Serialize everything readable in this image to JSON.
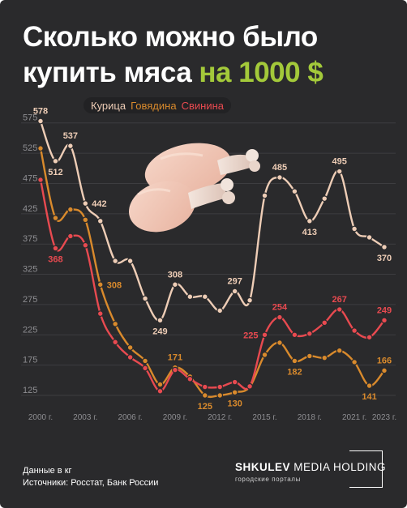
{
  "title": {
    "line1": "Сколько можно было",
    "line2_prefix": "купить мяса ",
    "line2_accent": "на 1000 $"
  },
  "colors": {
    "background": "#2a2a2c",
    "accent": "#a3c93a",
    "chicken": "#eecdb6",
    "beef": "#d98a2c",
    "pork": "#e84a50",
    "grid": "#3d3d40"
  },
  "legend": {
    "chicken": "Курица",
    "beef": "Говядина",
    "pork": "Свинина"
  },
  "footer": {
    "units": "Данные в кг",
    "sources": "Источники: Росстат, Банк России"
  },
  "brand": {
    "name_bold": "SHKULEV",
    "name_rest": " MEDIA HOLDING",
    "tagline": "городские порталы"
  },
  "image": {
    "name": "chicken-drumsticks"
  },
  "chart_data": {
    "type": "line",
    "x": [
      2000,
      2001,
      2002,
      2003,
      2004,
      2005,
      2006,
      2007,
      2008,
      2009,
      2010,
      2011,
      2012,
      2013,
      2014,
      2015,
      2016,
      2017,
      2018,
      2019,
      2020,
      2021,
      2022,
      2023
    ],
    "x_tick_labels": [
      "2000 г.",
      "2003 г.",
      "2006 г.",
      "2009 г.",
      "2012 г.",
      "2015 г.",
      "2018 г.",
      "2021 г.",
      "2023 г."
    ],
    "x_tick_years": [
      2000,
      2003,
      2006,
      2009,
      2012,
      2015,
      2018,
      2021,
      2023
    ],
    "y_ticks": [
      125,
      175,
      225,
      275,
      325,
      375,
      425,
      475,
      525,
      575
    ],
    "ylim": [
      100,
      590
    ],
    "grid": "horizontal",
    "legend_position": "top-center",
    "series": [
      {
        "name": "Курица",
        "color": "#eecdb6",
        "values": [
          578,
          512,
          537,
          442,
          413,
          347,
          347,
          285,
          249,
          308,
          288,
          288,
          265,
          297,
          282,
          455,
          485,
          462,
          413,
          450,
          495,
          400,
          386,
          370
        ],
        "labels": [
          {
            "i": 0,
            "text": "578",
            "pos": "above"
          },
          {
            "i": 1,
            "text": "512",
            "pos": "below"
          },
          {
            "i": 2,
            "text": "537",
            "pos": "above"
          },
          {
            "i": 3,
            "text": "442",
            "pos": "right"
          },
          {
            "i": 8,
            "text": "249",
            "pos": "below"
          },
          {
            "i": 9,
            "text": "308",
            "pos": "above"
          },
          {
            "i": 13,
            "text": "297",
            "pos": "above"
          },
          {
            "i": 16,
            "text": "485",
            "pos": "above"
          },
          {
            "i": 18,
            "text": "413",
            "pos": "below"
          },
          {
            "i": 20,
            "text": "495",
            "pos": "above"
          },
          {
            "i": 23,
            "text": "370",
            "pos": "below"
          }
        ]
      },
      {
        "name": "Говядина",
        "color": "#d98a2c",
        "values": [
          533,
          418,
          432,
          415,
          308,
          243,
          204,
          182,
          143,
          171,
          156,
          125,
          125,
          130,
          139,
          192,
          212,
          182,
          190,
          187,
          199,
          180,
          141,
          166
        ],
        "labels": [
          {
            "i": 4,
            "text": "308",
            "pos": "right"
          },
          {
            "i": 9,
            "text": "171",
            "pos": "above"
          },
          {
            "i": 11,
            "text": "125",
            "pos": "below"
          },
          {
            "i": 13,
            "text": "130",
            "pos": "below"
          },
          {
            "i": 17,
            "text": "182",
            "pos": "below"
          },
          {
            "i": 22,
            "text": "141",
            "pos": "below"
          },
          {
            "i": 23,
            "text": "166",
            "pos": "above"
          }
        ]
      },
      {
        "name": "Свинина",
        "color": "#e84a50",
        "values": [
          481,
          368,
          388,
          373,
          260,
          213,
          188,
          170,
          132,
          167,
          152,
          139,
          139,
          147,
          140,
          225,
          254,
          225,
          227,
          245,
          267,
          232,
          221,
          249
        ],
        "labels": [
          {
            "i": 1,
            "text": "368",
            "pos": "below"
          },
          {
            "i": 15,
            "text": "225",
            "pos": "left"
          },
          {
            "i": 16,
            "text": "254",
            "pos": "above"
          },
          {
            "i": 20,
            "text": "267",
            "pos": "above"
          },
          {
            "i": 23,
            "text": "249",
            "pos": "above"
          }
        ]
      }
    ]
  }
}
